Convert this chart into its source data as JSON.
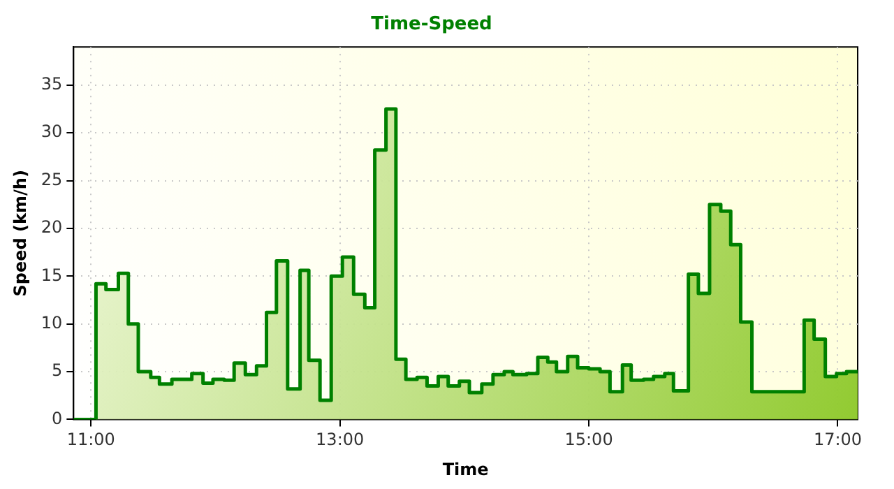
{
  "chart_data": {
    "type": "step",
    "title": "Time-Speed",
    "xlabel": "Time",
    "ylabel": "Speed (km/h)",
    "xlim": [
      10.86,
      17.16
    ],
    "ylim": [
      0,
      39
    ],
    "xticks": [
      {
        "value": 11,
        "label": "11:00"
      },
      {
        "value": 13,
        "label": "13:00"
      },
      {
        "value": 15,
        "label": "15:00"
      },
      {
        "value": 17,
        "label": "17:00"
      }
    ],
    "yticks": [
      0,
      5,
      10,
      15,
      20,
      25,
      30,
      35
    ],
    "grid": true,
    "legend": false,
    "marker": "none",
    "line_style": "solid",
    "series": [
      {
        "color": "#008000",
        "x": [
          10.86,
          11.04,
          11.12,
          11.22,
          11.3,
          11.38,
          11.48,
          11.55,
          11.65,
          11.81,
          11.9,
          11.98,
          12.07,
          12.15,
          12.24,
          12.33,
          12.41,
          12.49,
          12.58,
          12.68,
          12.75,
          12.84,
          12.93,
          13.02,
          13.11,
          13.2,
          13.28,
          13.37,
          13.45,
          13.53,
          13.62,
          13.7,
          13.79,
          13.87,
          13.96,
          14.04,
          14.14,
          14.23,
          14.32,
          14.39,
          14.5,
          14.59,
          14.67,
          14.74,
          14.83,
          14.91,
          15,
          15.09,
          15.17,
          15.27,
          15.34,
          15.44,
          15.52,
          15.61,
          15.68,
          15.8,
          15.88,
          15.97,
          16.06,
          16.14,
          16.22,
          16.31,
          16.73,
          16.81,
          16.9,
          16.99,
          17.07,
          17.16
        ],
        "values": [
          0,
          14.2,
          13.6,
          15.3,
          10,
          5,
          4.4,
          3.7,
          4.2,
          4.8,
          3.8,
          4.2,
          4.1,
          5.9,
          4.7,
          5.6,
          11.2,
          16.6,
          3.2,
          15.6,
          6.2,
          2,
          15,
          17,
          13.1,
          11.7,
          28.2,
          32.5,
          6.3,
          4.2,
          4.4,
          3.5,
          4.5,
          3.5,
          4,
          2.8,
          3.7,
          4.7,
          5,
          4.7,
          4.8,
          6.5,
          6,
          5,
          6.6,
          5.4,
          5.3,
          5,
          2.9,
          5.7,
          4.1,
          4.2,
          4.5,
          4.8,
          3,
          15.2,
          13.2,
          22.5,
          21.8,
          18.3,
          10.2,
          2.9,
          10.4,
          8.4,
          4.5,
          4.8,
          5,
          5
        ]
      }
    ]
  }
}
